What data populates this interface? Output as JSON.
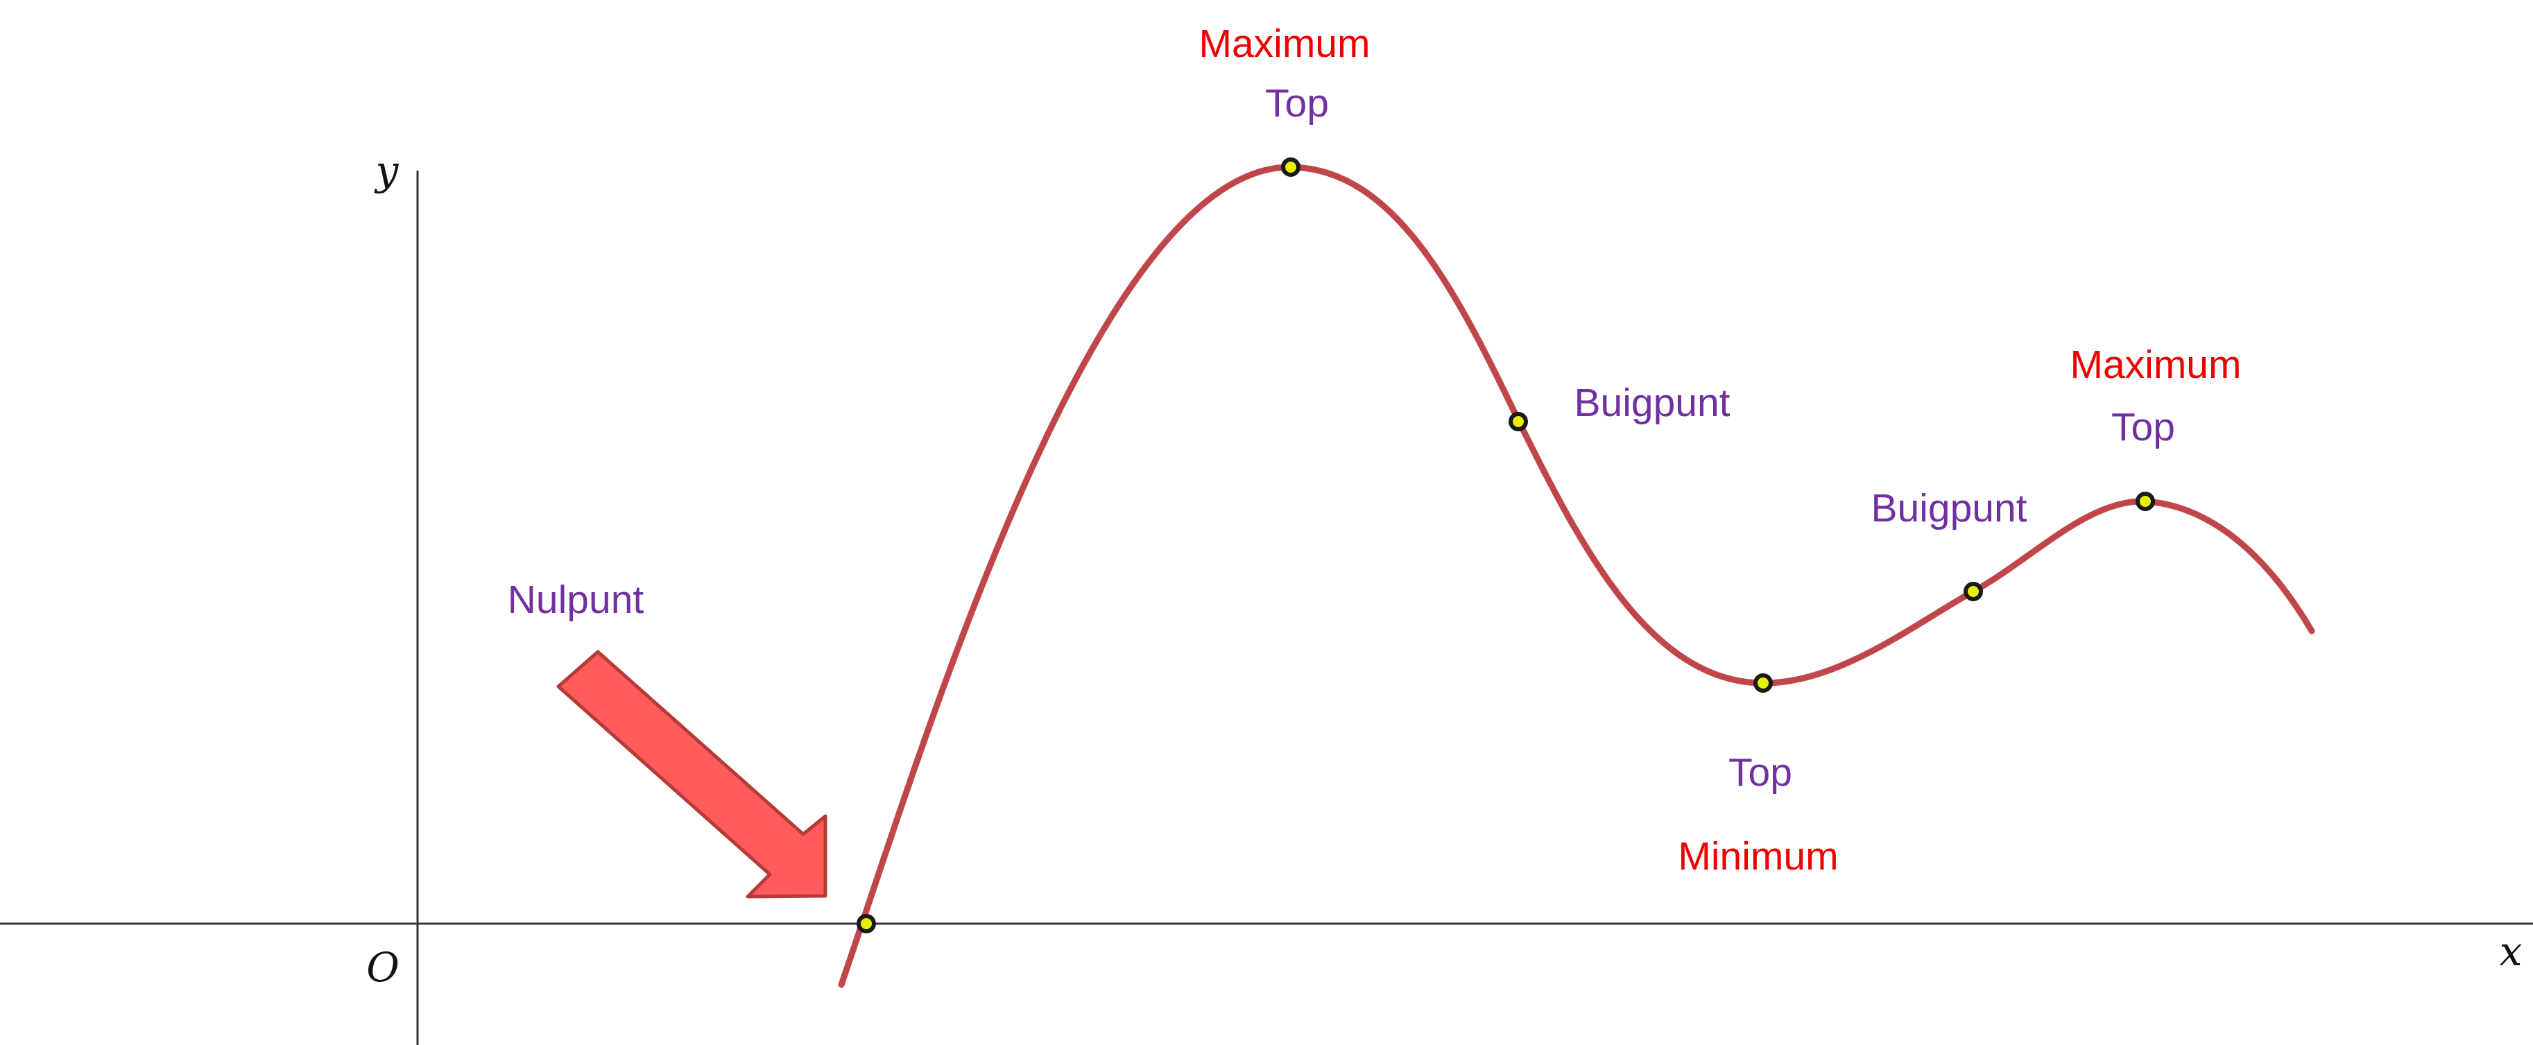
{
  "axes": {
    "x_label": "x",
    "y_label": "y",
    "origin_label": "O"
  },
  "points": {
    "zero": {
      "type_label": "Nulpunt"
    },
    "max1": {
      "kind_label": "Maximum",
      "type_label": "Top"
    },
    "inflection1": {
      "type_label": "Buigpunt"
    },
    "min1": {
      "type_label": "Top",
      "kind_label": "Minimum"
    },
    "inflection2": {
      "type_label": "Buigpunt"
    },
    "max2": {
      "kind_label": "Maximum",
      "type_label": "Top"
    }
  },
  "colors": {
    "curve": "#c0464a",
    "point_fill": "#e8f000",
    "point_stroke": "#1a1a1a",
    "kind_text": "#ee0000",
    "type_text": "#7030a0",
    "axis": "#333333",
    "arrow_fill": "#ff5b5b",
    "arrow_stroke": "#b53a3a"
  },
  "icons": {
    "pointer": "arrow-icon"
  }
}
